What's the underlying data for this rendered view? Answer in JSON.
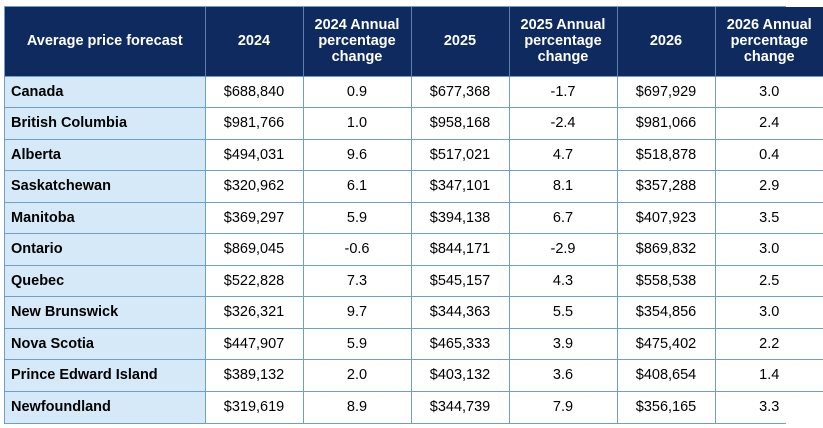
{
  "table": {
    "headers": [
      "Average price forecast",
      "2024",
      "2024 Annual percentage change",
      "2025",
      "2025 Annual percentage change",
      "2026",
      "2026 Annual percentage change"
    ],
    "rows": [
      {
        "region": "Canada",
        "p2024": "$688,840",
        "c2024": "0.9",
        "p2025": "$677,368",
        "c2025": "-1.7",
        "p2026": "$697,929",
        "c2026": "3.0"
      },
      {
        "region": "British Columbia",
        "p2024": "$981,766",
        "c2024": "1.0",
        "p2025": "$958,168",
        "c2025": "-2.4",
        "p2026": "$981,066",
        "c2026": "2.4"
      },
      {
        "region": "Alberta",
        "p2024": "$494,031",
        "c2024": "9.6",
        "p2025": "$517,021",
        "c2025": "4.7",
        "p2026": "$518,878",
        "c2026": "0.4"
      },
      {
        "region": "Saskatchewan",
        "p2024": "$320,962",
        "c2024": "6.1",
        "p2025": "$347,101",
        "c2025": "8.1",
        "p2026": "$357,288",
        "c2026": "2.9"
      },
      {
        "region": "Manitoba",
        "p2024": "$369,297",
        "c2024": "5.9",
        "p2025": "$394,138",
        "c2025": "6.7",
        "p2026": "$407,923",
        "c2026": "3.5"
      },
      {
        "region": "Ontario",
        "p2024": "$869,045",
        "c2024": "-0.6",
        "p2025": "$844,171",
        "c2025": "-2.9",
        "p2026": "$869,832",
        "c2026": "3.0"
      },
      {
        "region": "Quebec",
        "p2024": "$522,828",
        "c2024": "7.3",
        "p2025": "$545,157",
        "c2025": "4.3",
        "p2026": "$558,538",
        "c2026": "2.5"
      },
      {
        "region": "New Brunswick",
        "p2024": "$326,321",
        "c2024": "9.7",
        "p2025": "$344,363",
        "c2025": "5.5",
        "p2026": "$354,856",
        "c2026": "3.0"
      },
      {
        "region": "Nova Scotia",
        "p2024": "$447,907",
        "c2024": "5.9",
        "p2025": "$465,333",
        "c2025": "3.9",
        "p2026": "$475,402",
        "c2026": "2.2"
      },
      {
        "region": "Prince Edward Island",
        "p2024": "$389,132",
        "c2024": "2.0",
        "p2025": "$403,132",
        "c2025": "3.6",
        "p2026": "$408,654",
        "c2026": "1.4"
      },
      {
        "region": "Newfoundland",
        "p2024": "$319,619",
        "c2024": "8.9",
        "p2025": "$344,739",
        "c2025": "7.9",
        "p2026": "$356,165",
        "c2026": "3.3"
      }
    ]
  },
  "colors": {
    "header_bg": "#0f2a5e",
    "header_text": "#ffffff",
    "region_bg": "#d6e9f8",
    "grid": "#6f9fc8"
  }
}
